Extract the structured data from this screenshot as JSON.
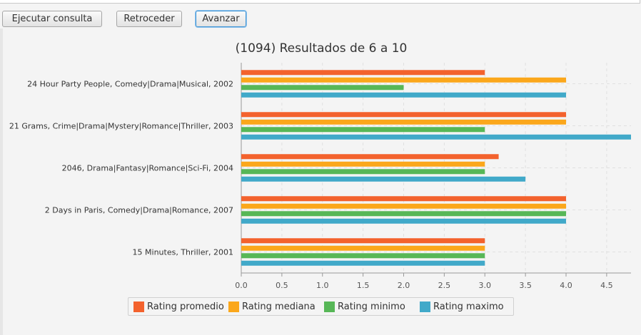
{
  "toolbar": {
    "run_label": "Ejecutar consulta",
    "back_label": "Retroceder",
    "next_label": "Avanzar"
  },
  "chart_data": {
    "type": "bar",
    "orientation": "horizontal",
    "title": "(1094) Resultados de 6 a 10",
    "xlabel": "",
    "ylabel": "",
    "xlim": [
      0,
      4.8
    ],
    "x_ticks": [
      "0.0",
      "0.5",
      "1.0",
      "1.5",
      "2.0",
      "2.5",
      "3.0",
      "3.5",
      "4.0",
      "4.5"
    ],
    "grid": true,
    "legend_position": "bottom",
    "categories": [
      "24 Hour Party People, Comedy|Drama|Musical, 2002",
      "21 Grams, Crime|Drama|Mystery|Romance|Thriller, 2003",
      "2046, Drama|Fantasy|Romance|Sci-Fi, 2004",
      "2 Days in Paris, Comedy|Drama|Romance, 2007",
      "15 Minutes, Thriller, 2001"
    ],
    "series": [
      {
        "name": "Rating promedio",
        "color": "#f3622d",
        "values": [
          3.0,
          4.0,
          3.17,
          4.0,
          3.0
        ]
      },
      {
        "name": "Rating mediana",
        "color": "#fba71b",
        "values": [
          4.0,
          4.0,
          3.0,
          4.0,
          3.0
        ]
      },
      {
        "name": "Rating minimo",
        "color": "#57b757",
        "values": [
          2.0,
          3.0,
          3.0,
          4.0,
          3.0
        ]
      },
      {
        "name": "Rating maximo",
        "color": "#41a9c9",
        "values": [
          4.0,
          5.0,
          3.5,
          4.0,
          3.0
        ]
      }
    ]
  }
}
